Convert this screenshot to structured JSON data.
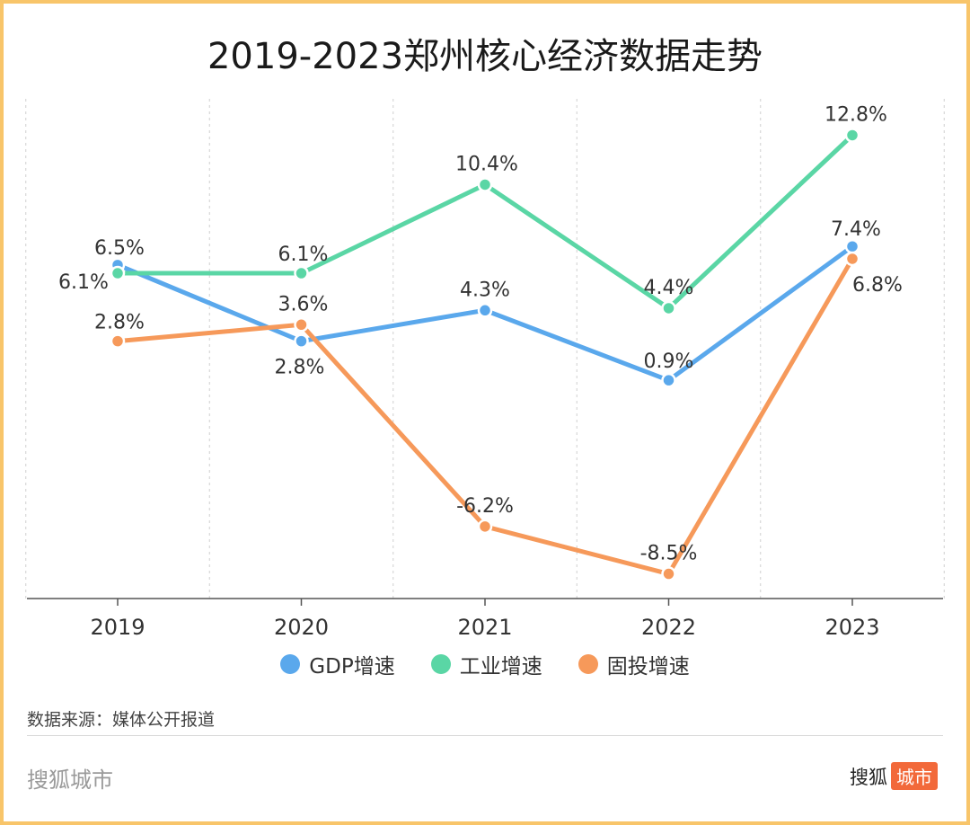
{
  "title": "2019-2023郑州核心经济数据走势",
  "chart_data": {
    "type": "line",
    "title": "2019-2023郑州核心经济数据走势",
    "categories": [
      "2019",
      "2020",
      "2021",
      "2022",
      "2023"
    ],
    "ylim": [
      -9,
      14
    ],
    "grid": "vertical-dashed",
    "legend_position": "bottom-center",
    "series": [
      {
        "name": "GDP增速",
        "color": "#5aa8ec",
        "values": [
          6.5,
          2.8,
          4.3,
          0.9,
          7.4
        ],
        "labels": [
          "6.5%",
          "2.8%",
          "4.3%",
          "0.9%",
          "7.4%"
        ]
      },
      {
        "name": "工业增速",
        "color": "#5ad6a5",
        "values": [
          6.1,
          6.1,
          10.4,
          4.4,
          12.8
        ],
        "labels": [
          "6.1%",
          "6.1%",
          "10.4%",
          "4.4%",
          "12.8%"
        ]
      },
      {
        "name": "固投增速",
        "color": "#f6995a",
        "values": [
          2.8,
          3.6,
          -6.2,
          -8.5,
          6.8
        ],
        "labels": [
          "2.8%",
          "3.6%",
          "-6.2%",
          "-8.5%",
          "6.8%"
        ]
      }
    ]
  },
  "legend": [
    {
      "label": "GDP增速",
      "color": "#5aa8ec"
    },
    {
      "label": "工业增速",
      "color": "#5ad6a5"
    },
    {
      "label": "固投增速",
      "color": "#f6995a"
    }
  ],
  "source": "数据来源：媒体公开报道",
  "brand": {
    "left": "搜狐城市",
    "right_text": "搜狐",
    "right_badge": "城市"
  },
  "colors": {
    "border": "#f8c56a",
    "badge": "#f2693a"
  }
}
